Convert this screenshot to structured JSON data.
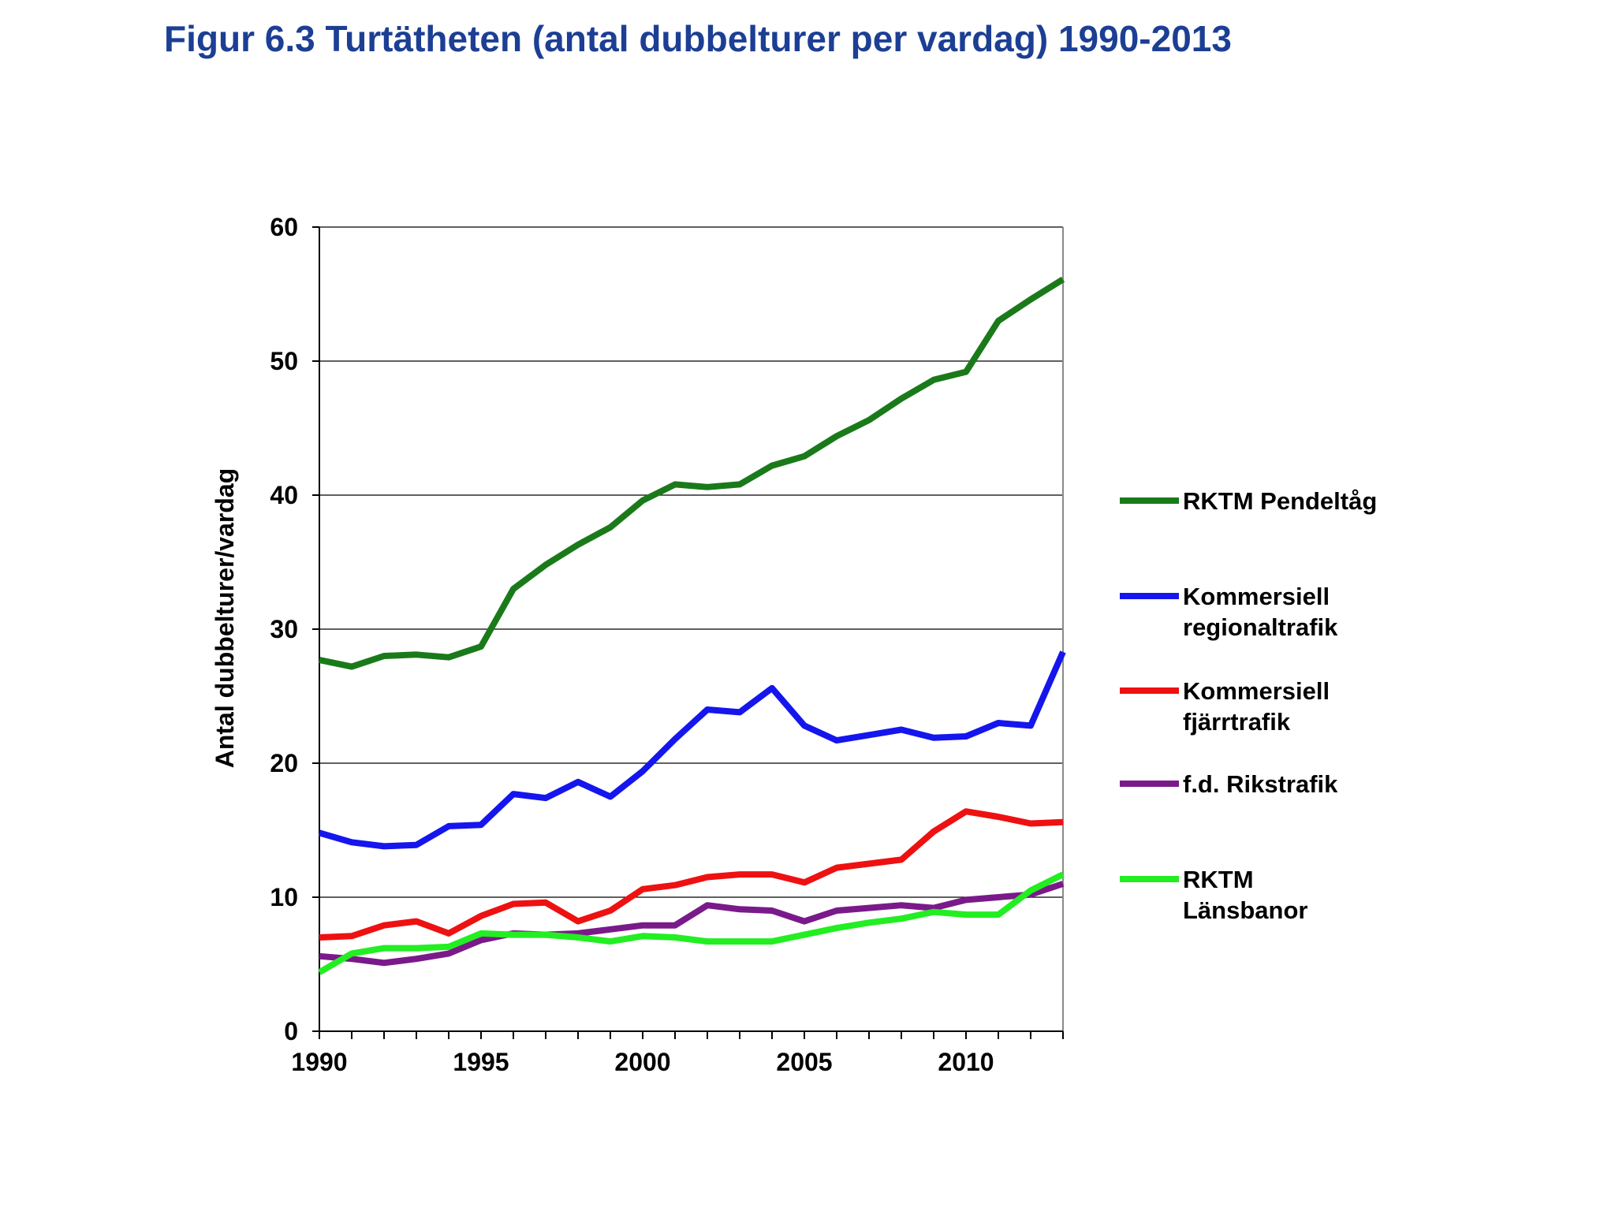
{
  "page": {
    "title": "Figur 6.3 Turtätheten (antal dubbelturer per vardag) 1990-2013"
  },
  "chart_data": {
    "type": "line",
    "title": "",
    "xlabel": "",
    "ylabel": "Antal dubbelturer/vardag",
    "xlim": [
      1990,
      2013
    ],
    "ylim": [
      0,
      60
    ],
    "x_ticks": [
      1990,
      1995,
      2000,
      2005,
      2010
    ],
    "y_ticks": [
      0,
      10,
      20,
      30,
      40,
      50,
      60
    ],
    "grid": "horizontal",
    "legend_position": "right",
    "x": [
      1990,
      1991,
      1992,
      1993,
      1994,
      1995,
      1996,
      1997,
      1998,
      1999,
      2000,
      2001,
      2002,
      2003,
      2004,
      2005,
      2006,
      2007,
      2008,
      2009,
      2010,
      2011,
      2012,
      2013
    ],
    "series": [
      {
        "name": "RKTM Pendeltåg",
        "legend_lines": [
          "RKTM Pendeltåg"
        ],
        "color": "#1a7a1a",
        "values": [
          27.7,
          27.2,
          28.0,
          28.1,
          27.9,
          28.7,
          33.0,
          34.8,
          36.3,
          37.6,
          39.6,
          40.8,
          40.6,
          40.8,
          42.2,
          42.9,
          44.4,
          45.6,
          47.2,
          48.6,
          49.2,
          53.0,
          54.6,
          56.1
        ]
      },
      {
        "name": "Kommersiell regionaltrafik",
        "legend_lines": [
          "Kommersiell",
          "regionaltrafik"
        ],
        "color": "#1515ee",
        "values": [
          14.8,
          14.1,
          13.8,
          13.9,
          15.3,
          15.4,
          17.7,
          17.4,
          18.6,
          17.5,
          19.4,
          21.8,
          24.0,
          23.8,
          25.6,
          22.8,
          21.7,
          22.1,
          22.5,
          21.9,
          22.0,
          23.0,
          22.8,
          28.3
        ]
      },
      {
        "name": "Kommersiell fjärrtrafik",
        "legend_lines": [
          "Kommersiell",
          "fjärrtrafik"
        ],
        "color": "#ee1111",
        "values": [
          7.0,
          7.1,
          7.9,
          8.2,
          7.3,
          8.6,
          9.5,
          9.6,
          8.2,
          9.0,
          10.6,
          10.9,
          11.5,
          11.7,
          11.7,
          11.1,
          12.2,
          12.5,
          12.8,
          14.9,
          16.4,
          16.0,
          15.5,
          15.6
        ]
      },
      {
        "name": "f.d. Rikstrafik",
        "legend_lines": [
          " f.d. Rikstrafik"
        ],
        "color": "#7a1a8a",
        "values": [
          5.6,
          5.4,
          5.1,
          5.4,
          5.8,
          6.8,
          7.3,
          7.2,
          7.3,
          7.6,
          7.9,
          7.9,
          9.4,
          9.1,
          9.0,
          8.2,
          9.0,
          9.2,
          9.4,
          9.2,
          9.8,
          10.0,
          10.2,
          11.0
        ]
      },
      {
        "name": "RKTM Länsbanor",
        "legend_lines": [
          "RKTM",
          "Länsbanor"
        ],
        "color": "#22ee22",
        "values": [
          4.4,
          5.8,
          6.2,
          6.2,
          6.3,
          7.3,
          7.2,
          7.2,
          7.0,
          6.7,
          7.1,
          7.0,
          6.7,
          6.7,
          6.7,
          7.2,
          7.7,
          8.1,
          8.4,
          8.9,
          8.7,
          8.7,
          10.5,
          11.7
        ]
      }
    ]
  }
}
